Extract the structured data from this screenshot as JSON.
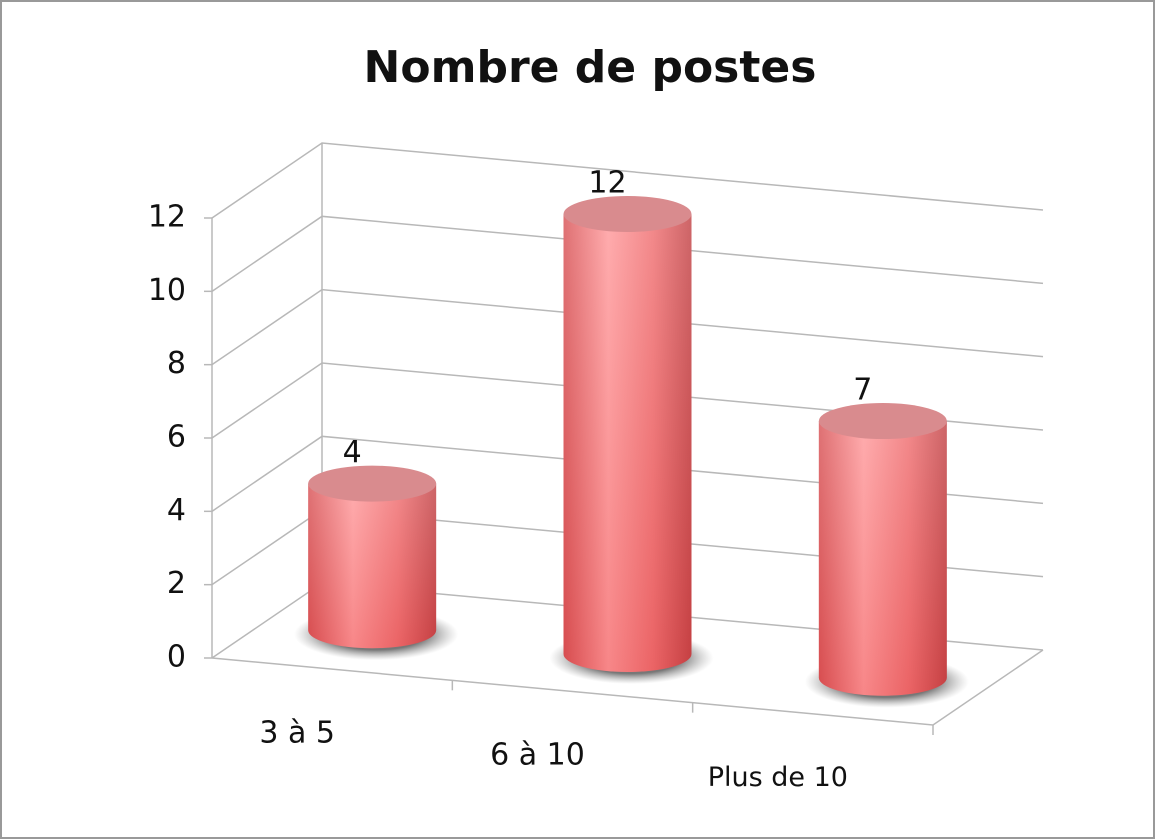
{
  "chart_data": {
    "type": "bar",
    "title": "Nombre de postes",
    "categories": [
      "3 à 5",
      "6 à 10",
      "Plus de 10"
    ],
    "values": [
      4,
      12,
      7
    ],
    "color": "#f07a7c",
    "ylim": [
      0,
      12
    ],
    "yticks": [
      0,
      2,
      4,
      6,
      8,
      10,
      12
    ],
    "grid": true
  }
}
